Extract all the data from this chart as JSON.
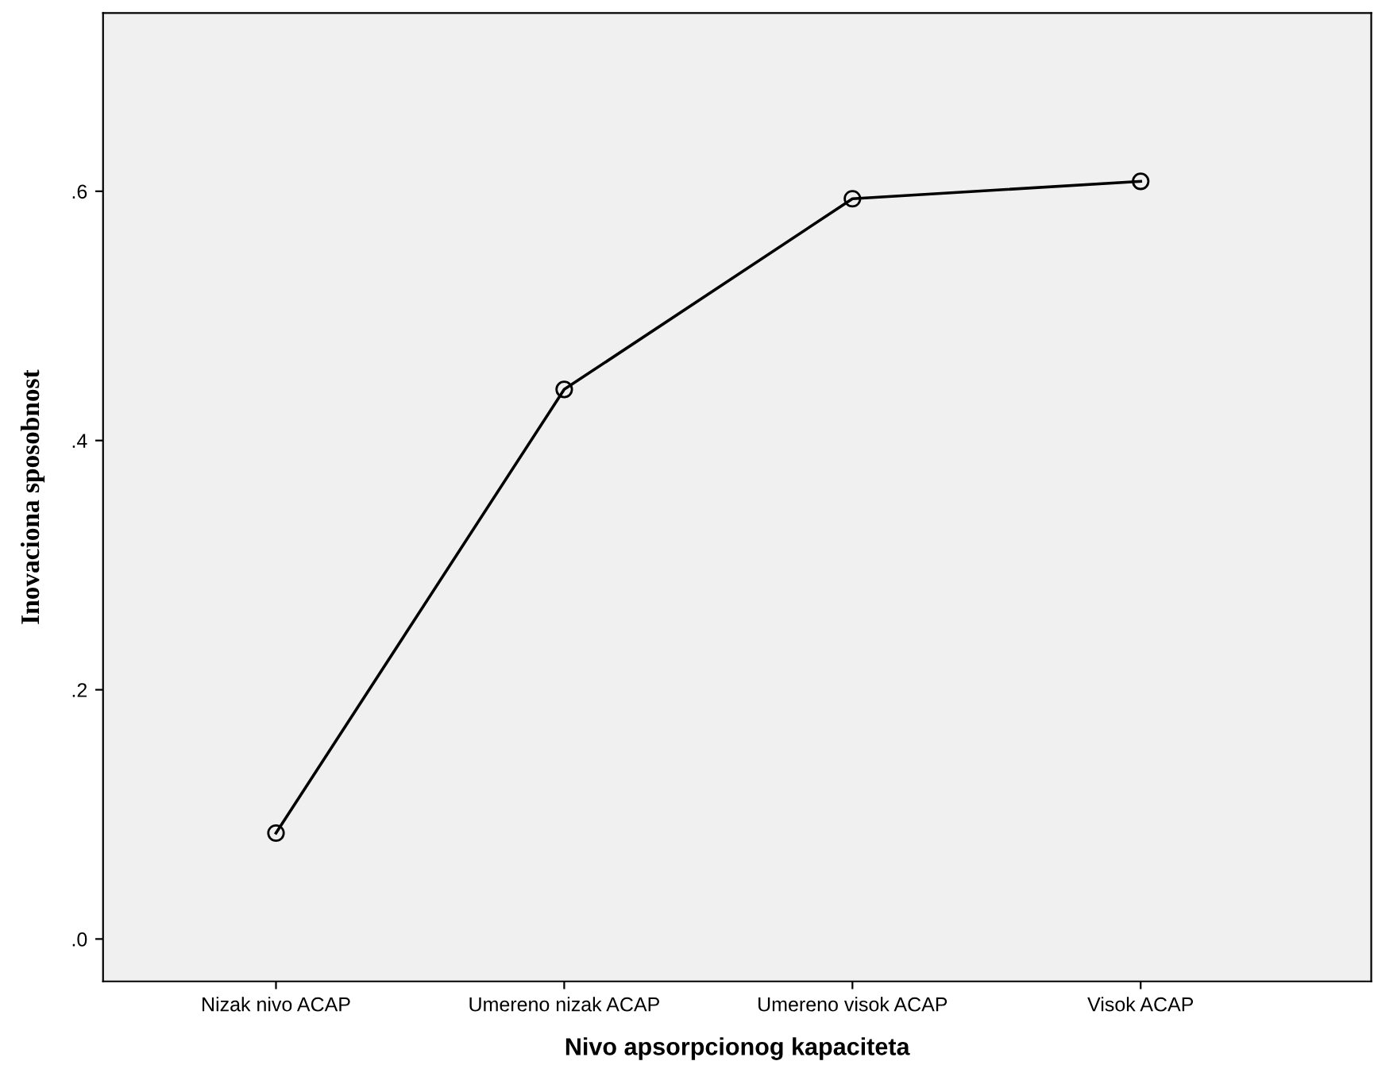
{
  "chart_data": {
    "type": "line",
    "xlabel": "Nivo apsorpcionog kapaciteta",
    "ylabel": "Inovaciona sposobnost",
    "categories": [
      "Nizak nivo ACAP",
      "Umereno nizak ACAP",
      "Umereno visok ACAP",
      "Visok ACAP"
    ],
    "series": [
      {
        "color": "#000000",
        "values": [
          0.085,
          0.441,
          0.594,
          0.608
        ]
      }
    ],
    "ylim": [
      -0.034,
      0.743
    ],
    "yticks": [
      {
        "value": 0,
        "label": ".0"
      },
      {
        "value": 0.2,
        "label": ".2"
      },
      {
        "value": 0.4,
        "label": ".4"
      },
      {
        "value": 0.6,
        "label": ".6"
      }
    ],
    "marker": "circle",
    "line_style": "solid",
    "grid": false,
    "legend": false
  }
}
